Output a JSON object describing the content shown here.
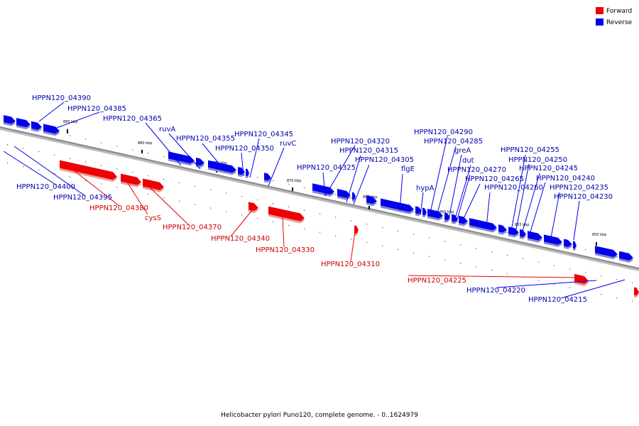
{
  "legend": [
    {
      "label": "Forward",
      "color": "#ee0000"
    },
    {
      "label": "Reverse",
      "color": "#0000ee"
    }
  ],
  "colors": {
    "forward": "#ee0000",
    "forward_label": "#cc0000",
    "reverse": "#0000ee",
    "reverse_label": "#0000aa",
    "backbone": "#888888"
  },
  "scale_ticks": [
    "885 kbp",
    "880 kbp",
    "875 kbp",
    "870 kbp",
    "865 kbp",
    "860 kbp",
    "855 kbp",
    "850 kbp"
  ],
  "gene_labels": [
    "HPPN120_04390",
    "HPPN120_04385",
    "HPPN120_04365",
    "ruvA",
    "HPPN120_04355",
    "HPPN120_04345",
    "HPPN120_04350",
    "ruvC",
    "HPPN120_04320",
    "HPPN120_04315",
    "HPPN120_04305",
    "HPPN120_04325",
    "flgE",
    "hypA",
    "HPPN120_04290",
    "HPPN120_04285",
    "greA",
    "dut",
    "HPPN120_04270",
    "HPPN120_04265",
    "HPPN120_04260",
    "HPPN120_04255",
    "HPPN120_04250",
    "HPPN120_04245",
    "HPPN120_04240",
    "HPPN120_04235",
    "HPPN120_04230",
    "HPPN120_04400",
    "HPPN120_04395",
    "HPPN120_04380",
    "cysS",
    "HPPN120_04370",
    "HPPN120_04340",
    "HPPN120_04330",
    "HPPN120_04310",
    "HPPN120_04225",
    "HPPN120_04220",
    "HPPN120_04215"
  ],
  "caption": "Helicobacter pylori Puno120, complete genome. - 0..1624979"
}
